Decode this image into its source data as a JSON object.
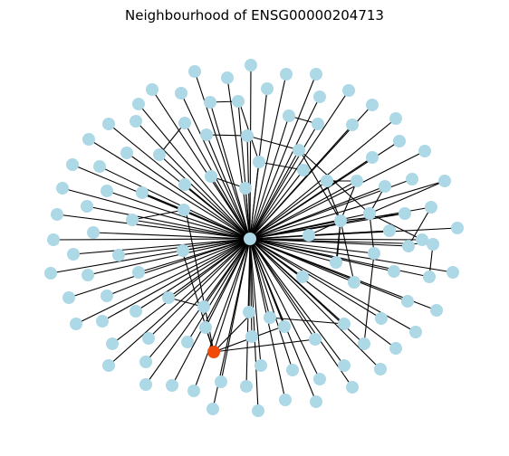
{
  "title": "Neighbourhood of ENSG00000204713",
  "colors": {
    "node": "#add8e6",
    "highlight": "#f04a0a",
    "edge": "#000000",
    "background": "#ffffff"
  },
  "graph": {
    "layout": "radial neighbourhood graph",
    "hub_count": 1,
    "highlighted_count": 1
  }
}
